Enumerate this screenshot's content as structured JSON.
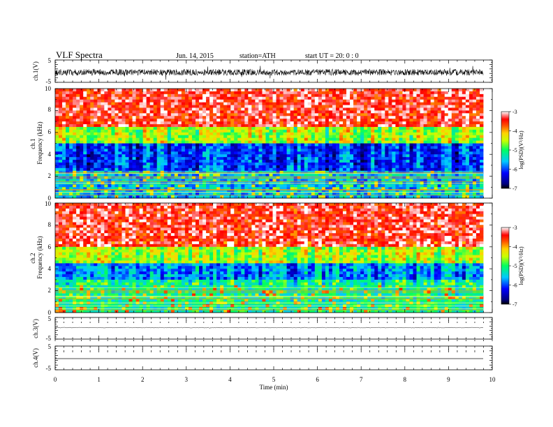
{
  "header": {
    "title": "VLF  Spectra",
    "date": "Jun. 14, 2015",
    "station": "station=ATH",
    "start": "start  UT =   20: 0  : 0"
  },
  "colorbar": {
    "label": "log(PSD)(V²/Hz)",
    "ticks": [
      "-3",
      "-4",
      "-5",
      "-6",
      "-7"
    ]
  },
  "chart_data": [
    {
      "type": "line",
      "ylabel": "ch.1(V)",
      "ylim": [
        -5,
        5
      ],
      "yticks": [
        "5",
        "-5"
      ],
      "xlim": [
        0,
        9.8
      ],
      "description": "noisy waveform around -0.5 V, amplitude about ±1.5 V"
    },
    {
      "type": "heatmap",
      "ylabel": "ch.1\nFrequency (kHz)",
      "ylim": [
        0,
        10
      ],
      "yticks": [
        "0",
        "2",
        "4",
        "6",
        "8",
        "10"
      ],
      "xlim": [
        0,
        9.8
      ],
      "zlim": [
        -7,
        -3
      ],
      "bands": [
        {
          "from": 6.5,
          "to": 10,
          "level": -3.4
        },
        {
          "from": 5.0,
          "to": 6.5,
          "level": -4.6
        },
        {
          "from": 2.4,
          "to": 5.0,
          "level": -6.1
        },
        {
          "from": 0,
          "to": 2.4,
          "level": -5.6
        }
      ]
    },
    {
      "type": "heatmap",
      "ylabel": "ch.2\nFrequency (kHz)",
      "ylim": [
        0,
        10
      ],
      "yticks": [
        "0",
        "2",
        "4",
        "6",
        "8",
        "10"
      ],
      "xlim": [
        0,
        9.8
      ],
      "zlim": [
        -7,
        -3
      ],
      "bands": [
        {
          "from": 6.0,
          "to": 10,
          "level": -3.4
        },
        {
          "from": 4.6,
          "to": 6.0,
          "level": -4.6
        },
        {
          "from": 3.0,
          "to": 4.6,
          "level": -5.8
        },
        {
          "from": 0,
          "to": 3.0,
          "level": -5.2
        }
      ]
    },
    {
      "type": "line",
      "ylabel": "ch.3(V)",
      "ylim": [
        -5,
        5
      ],
      "yticks": [
        "5",
        "-5"
      ],
      "xlim": [
        0,
        9.8
      ],
      "description": "nearly flat trace near 0 V"
    },
    {
      "type": "line",
      "ylabel": "ch.4(V)",
      "ylim": [
        -5,
        5
      ],
      "yticks": [
        "5",
        "-5"
      ],
      "xlim": [
        0,
        9.8
      ],
      "description": "flat trace near 0 V",
      "x_axis": {
        "label": "Time  (min)",
        "range": [
          0,
          10
        ],
        "ticks": [
          "0",
          "1",
          "2",
          "3",
          "4",
          "5",
          "6",
          "7",
          "8",
          "9",
          "10"
        ]
      }
    }
  ]
}
